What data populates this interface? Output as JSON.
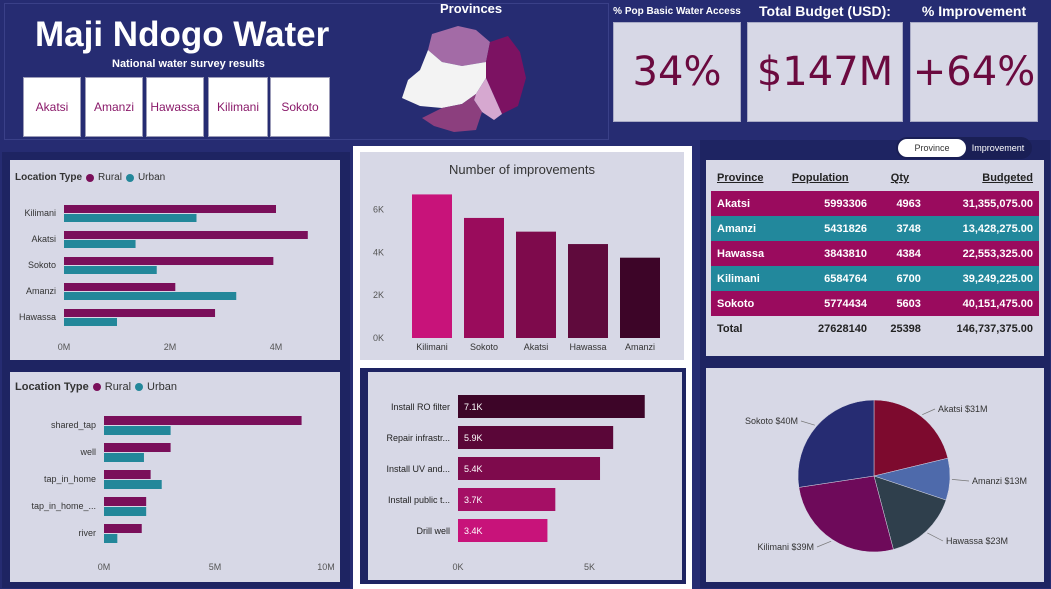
{
  "header": {
    "title": "Maji Ndogo Water",
    "subtitle": "National water survey results",
    "map_title": "Provinces"
  },
  "slicer": {
    "items": [
      "Akatsi",
      "Amanzi",
      "Hawassa",
      "Kilimani",
      "Sokoto"
    ]
  },
  "kpis": [
    {
      "label": "% Pop Basic Water Access",
      "value": "34%"
    },
    {
      "label": "Total Budget (USD):",
      "value": "$147M"
    },
    {
      "label": "% Improvement",
      "value": "+64%"
    }
  ],
  "toggle": {
    "on": "Province",
    "off": "Improvement"
  },
  "colors": {
    "rural": "#7a0f5a",
    "urban": "#23879a",
    "background": "#262c72",
    "panel": "#d7d8e6"
  },
  "chart_data": [
    {
      "type": "bar",
      "orientation": "horizontal",
      "legend_title": "Location Type",
      "categories": [
        "Kilimani",
        "Akatsi",
        "Sokoto",
        "Amanzi",
        "Hawassa"
      ],
      "series": [
        {
          "name": "Rural",
          "values": [
            4.0,
            4.6,
            3.95,
            2.1,
            2.85
          ]
        },
        {
          "name": "Urban",
          "values": [
            2.5,
            1.35,
            1.75,
            3.25,
            1.0
          ]
        }
      ],
      "x_ticks": [
        "0M",
        "2M",
        "4M"
      ],
      "xlim": [
        0,
        5
      ]
    },
    {
      "type": "bar",
      "orientation": "horizontal",
      "legend_title": "Location Type",
      "categories": [
        "shared_tap",
        "well",
        "tap_in_home",
        "tap_in_home_...",
        "river"
      ],
      "series": [
        {
          "name": "Rural",
          "values": [
            8.9,
            3.0,
            2.1,
            1.9,
            1.7
          ]
        },
        {
          "name": "Urban",
          "values": [
            3.0,
            1.8,
            2.6,
            1.9,
            0.6
          ]
        }
      ],
      "x_ticks": [
        "0M",
        "5M",
        "10M"
      ],
      "xlim": [
        0,
        10
      ]
    },
    {
      "type": "bar",
      "title": "Number of improvements",
      "categories": [
        "Kilimani",
        "Sokoto",
        "Akatsi",
        "Hawassa",
        "Amanzi"
      ],
      "values": [
        6700,
        5603,
        4963,
        4384,
        3748
      ],
      "colors": [
        "#c8137a",
        "#9a0c5c",
        "#7e0a4c",
        "#5f0a3c",
        "#3d0528"
      ],
      "y_ticks": [
        "0K",
        "2K",
        "4K",
        "6K"
      ],
      "ylim": [
        0,
        7000
      ]
    },
    {
      "type": "bar",
      "orientation": "horizontal",
      "categories": [
        "Install RO filter",
        "Repair infrastr...",
        "Install UV and...",
        "Install public t...",
        "Drill well"
      ],
      "values": [
        7.1,
        5.9,
        5.4,
        3.7,
        3.4
      ],
      "labels": [
        "7.1K",
        "5.9K",
        "5.4K",
        "3.7K",
        "3.4K"
      ],
      "colors": [
        "#3d0528",
        "#5a0638",
        "#7e0a4c",
        "#a50f65",
        "#c8137a"
      ],
      "x_ticks": [
        "0K",
        "5K"
      ],
      "xlim": [
        0,
        7.3
      ]
    },
    {
      "type": "pie",
      "categories": [
        "Akatsi",
        "Amanzi",
        "Hawassa",
        "Kilimani",
        "Sokoto"
      ],
      "values": [
        31,
        13,
        23,
        39,
        40
      ],
      "labels": [
        "Akatsi $31M",
        "Amanzi $13M",
        "Hawassa $23M",
        "Kilimani $39M",
        "Sokoto $40M"
      ],
      "colors": [
        "#7d0a2e",
        "#4e6aab",
        "#2f3f4c",
        "#6e0a5a",
        "#262c72"
      ]
    }
  ],
  "table": {
    "headers": [
      "Province",
      "Population",
      "Qty",
      "Budgeted"
    ],
    "rows": [
      {
        "province": "Akatsi",
        "population": "5993306",
        "qty": "4963",
        "budgeted": "31,355,075.00",
        "color": "#9a0b5e"
      },
      {
        "province": "Amanzi",
        "population": "5431826",
        "qty": "3748",
        "budgeted": "13,428,275.00",
        "color": "#22889c"
      },
      {
        "province": "Hawassa",
        "population": "3843810",
        "qty": "4384",
        "budgeted": "22,553,325.00",
        "color": "#9a0b5e"
      },
      {
        "province": "Kilimani",
        "population": "6584764",
        "qty": "6700",
        "budgeted": "39,249,225.00",
        "color": "#22889c"
      },
      {
        "province": "Sokoto",
        "population": "5774434",
        "qty": "5603",
        "budgeted": "40,151,475.00",
        "color": "#9a0b5e"
      }
    ],
    "total": {
      "label": "Total",
      "population": "27628140",
      "qty": "25398",
      "budgeted": "146,737,375.00"
    }
  }
}
